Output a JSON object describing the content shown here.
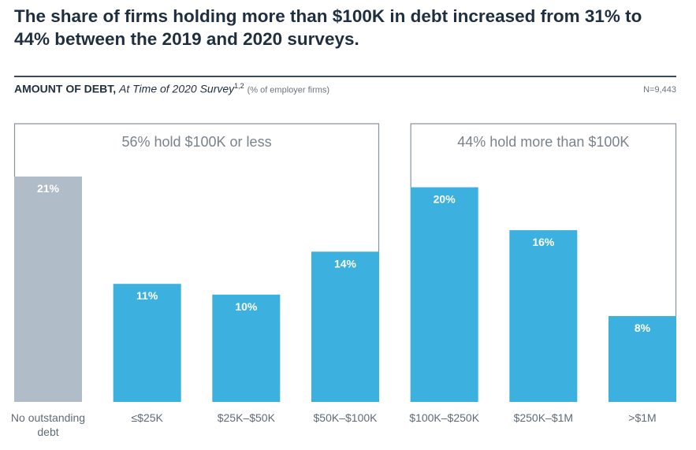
{
  "headline": "The share of firms holding more than $100K in debt increased from 31% to 44% between the 2019 and 2020 surveys.",
  "subtitle": {
    "main": "AMOUNT OF DEBT,",
    "italic": "At Time of 2020 Survey",
    "sup": "1,2",
    "note": "(% of employer firms)"
  },
  "n_label": "N=9,443",
  "colors": {
    "gray": "#b1bcc9",
    "blue": "#3cb1df",
    "bracket": "#8a939c",
    "value_text": "#ffffff"
  },
  "chart_data": {
    "type": "bar",
    "categories": [
      "No outstanding debt",
      "≤$25K",
      "$25K–$50K",
      "$50K–$100K",
      "$100K–$250K",
      "$250K–$1M",
      ">$1M"
    ],
    "category_lines": [
      [
        "No outstanding",
        "debt"
      ],
      [
        "≤$25K"
      ],
      [
        "$25K–$50K"
      ],
      [
        "$50K–$100K"
      ],
      [
        "$100K–$250K"
      ],
      [
        "$250K–$1M"
      ],
      [
        ">$1M"
      ]
    ],
    "values": [
      21,
      11,
      10,
      14,
      20,
      16,
      8
    ],
    "value_labels": [
      "21%",
      "11%",
      "10%",
      "14%",
      "20%",
      "16%",
      "8%"
    ],
    "bar_colors": [
      "gray",
      "blue",
      "blue",
      "blue",
      "blue",
      "blue",
      "blue"
    ],
    "unit": "%",
    "ylim": [
      0,
      21
    ],
    "groups": [
      {
        "label": "56% hold $100K or less",
        "from": 0,
        "to": 3
      },
      {
        "label": "44% hold more than $100K",
        "from": 4,
        "to": 6
      }
    ],
    "grid": false,
    "legend": "none"
  }
}
